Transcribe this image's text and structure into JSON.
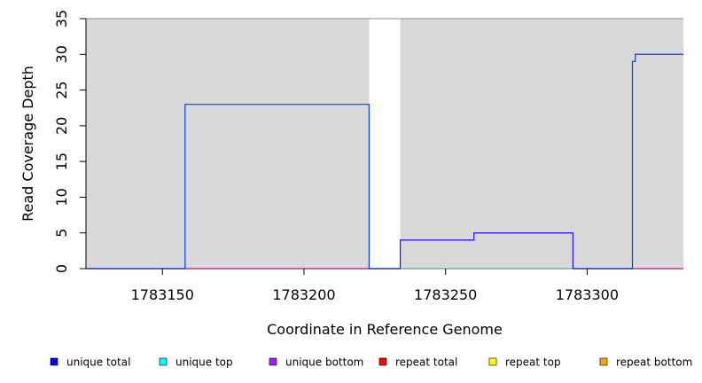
{
  "chart_data": {
    "type": "line",
    "title": "",
    "xlabel": "Coordinate in Reference Genome",
    "ylabel": "Read Coverage Depth",
    "xlim": [
      1783123,
      1783334
    ],
    "ylim": [
      0,
      35
    ],
    "xticks": [
      1783150,
      1783200,
      1783250,
      1783300
    ],
    "yticks": [
      0,
      5,
      10,
      15,
      20,
      25,
      30,
      35
    ],
    "grid": false,
    "covered_regions": [
      [
        1783123,
        1783223
      ],
      [
        1783234,
        1783334
      ]
    ],
    "colors": {
      "background": "#ffffff",
      "covered_region": "#d9d9d9",
      "gap_region": "#ffffff"
    },
    "series": [
      {
        "name": "unique total",
        "color": "#0000ff",
        "step": true,
        "points": [
          [
            1783123,
            0
          ],
          [
            1783158,
            23
          ],
          [
            1783223,
            0
          ],
          [
            1783234,
            4
          ],
          [
            1783260,
            5
          ],
          [
            1783295,
            0
          ],
          [
            1783316,
            29
          ],
          [
            1783317,
            30
          ],
          [
            1783334,
            30
          ]
        ]
      },
      {
        "name": "unique top",
        "color": "#00ffff",
        "step": true,
        "points": [
          [
            1783123,
            0
          ],
          [
            1783158,
            23
          ],
          [
            1783223,
            0
          ],
          [
            1783234,
            0
          ],
          [
            1783295,
            0
          ],
          [
            1783316,
            29
          ],
          [
            1783317,
            30
          ],
          [
            1783334,
            30
          ]
        ]
      },
      {
        "name": "unique bottom",
        "color": "#a020f0",
        "step": true,
        "points": [
          [
            1783123,
            0
          ],
          [
            1783223,
            0
          ],
          [
            1783234,
            4
          ],
          [
            1783260,
            5
          ],
          [
            1783295,
            0
          ],
          [
            1783334,
            0
          ]
        ]
      },
      {
        "name": "repeat total",
        "color": "#ff0000",
        "step": true,
        "points": [
          [
            1783123,
            0
          ],
          [
            1783334,
            0
          ]
        ]
      },
      {
        "name": "repeat top",
        "color": "#ffff00",
        "step": true,
        "points": [
          [
            1783123,
            0
          ],
          [
            1783334,
            0
          ]
        ]
      },
      {
        "name": "repeat bottom",
        "color": "#ffa500",
        "step": true,
        "points": [
          [
            1783123,
            0
          ],
          [
            1783334,
            0
          ]
        ]
      }
    ],
    "legend": {
      "placement": "bottom",
      "entries": [
        "unique total",
        "unique top",
        "unique bottom",
        "repeat total",
        "repeat top",
        "repeat bottom"
      ]
    }
  }
}
